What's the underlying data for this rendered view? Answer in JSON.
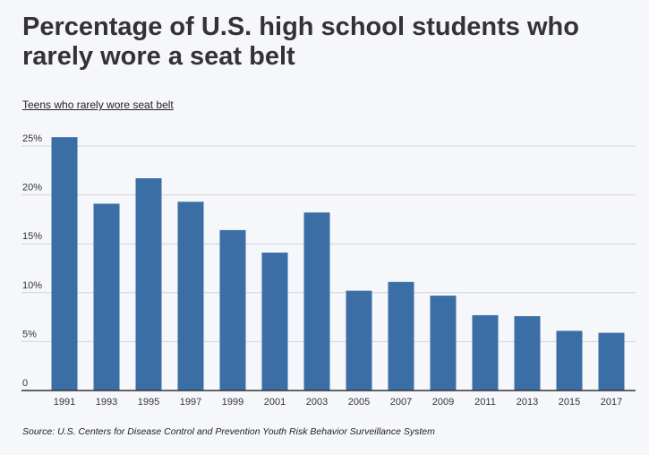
{
  "chart_data": {
    "type": "bar",
    "title": "Percentage of U.S. high school students who rarely wore a seat belt",
    "subtitle": "Teens who rarely wore seat belt",
    "source": "Source: U.S. Centers for Disease Control and Prevention Youth Risk Behavior Surveillance System",
    "xlabel": "",
    "ylabel": "",
    "categories": [
      "1991",
      "1993",
      "1995",
      "1997",
      "1999",
      "2001",
      "2003",
      "2005",
      "2007",
      "2009",
      "2011",
      "2013",
      "2015",
      "2017"
    ],
    "values": [
      25.9,
      19.1,
      21.7,
      19.3,
      16.4,
      14.1,
      18.2,
      10.2,
      11.1,
      9.7,
      7.7,
      7.6,
      6.1,
      5.9
    ],
    "ylim": [
      0,
      25
    ],
    "yticks": [
      0,
      5,
      10,
      15,
      20,
      25
    ],
    "ytick_labels": [
      "0",
      "5%",
      "10%",
      "15%",
      "20%",
      "25%"
    ],
    "grid": true,
    "bar_color": "#3a6ea5"
  }
}
